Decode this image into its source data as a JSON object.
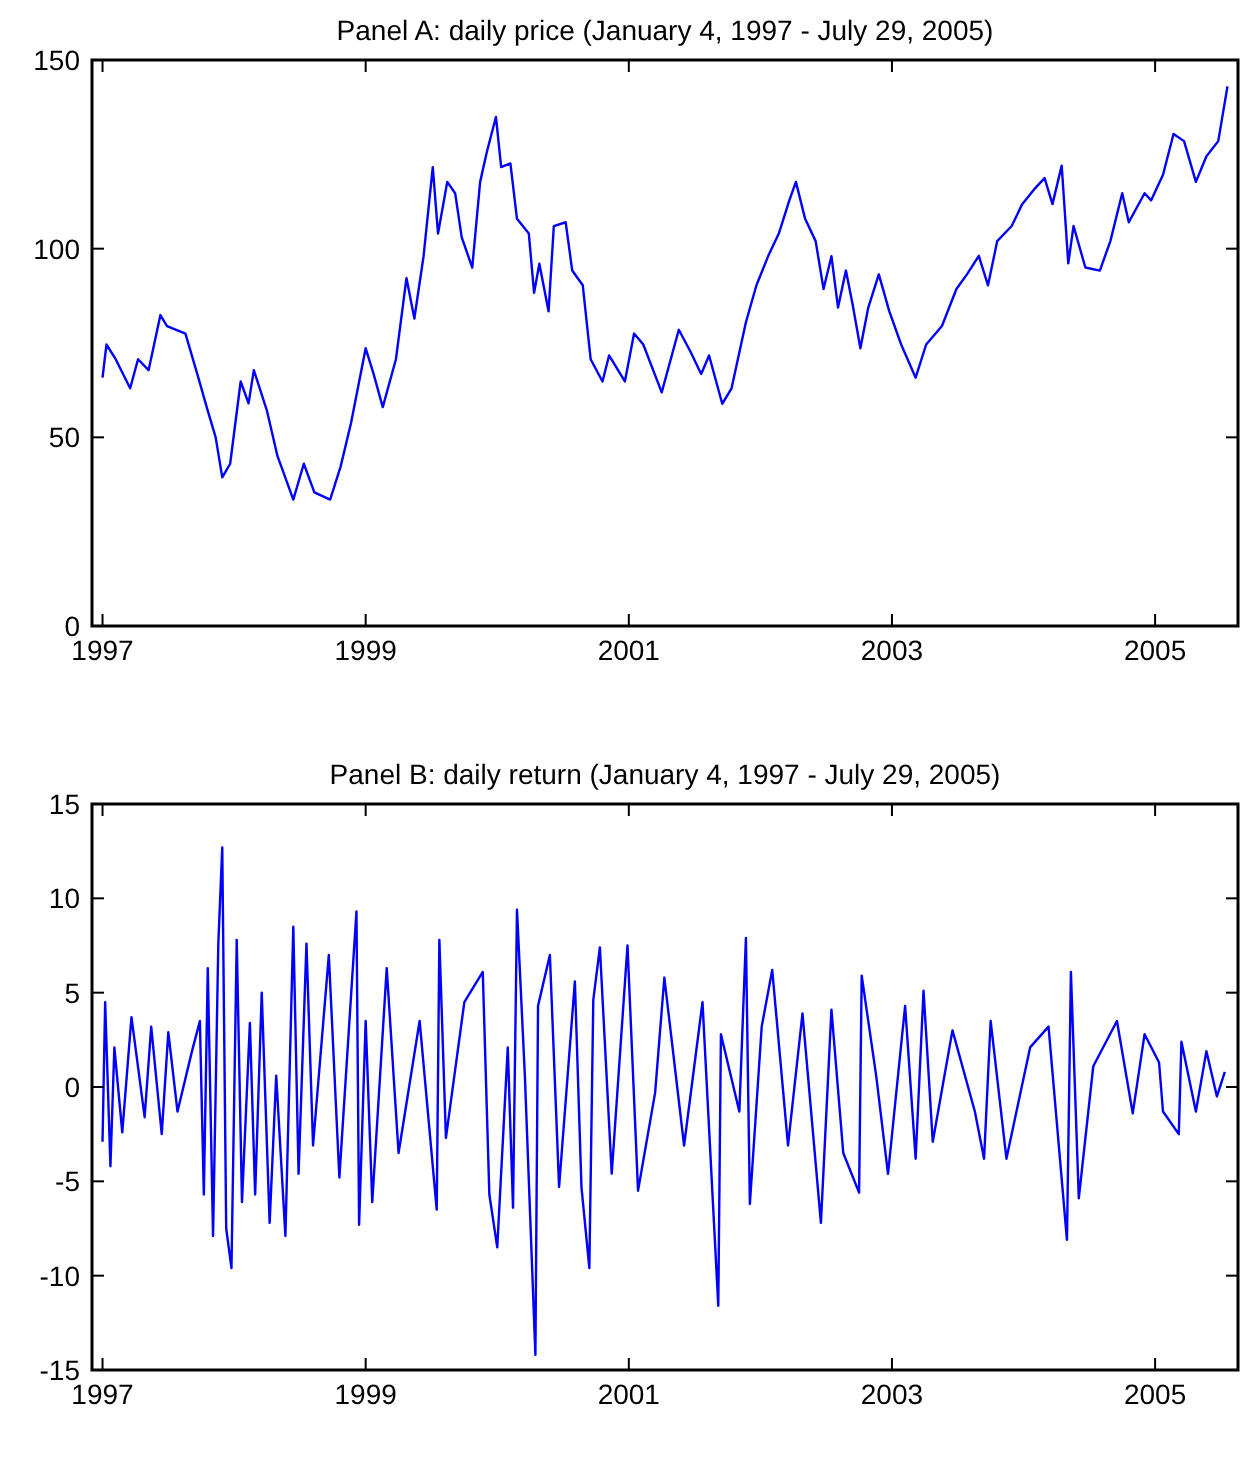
{
  "chart_data": [
    {
      "type": "line",
      "title": "Panel A: daily price (January 4, 1997 - July 29, 2005)",
      "color": "#0000ff",
      "xlim": [
        1996.92,
        2005.63
      ],
      "xticks": [
        1997,
        1999,
        2001,
        2003,
        2005
      ],
      "ylim": [
        0,
        150
      ],
      "yticks": [
        0,
        50,
        100,
        150
      ],
      "x": [
        1997.0,
        1997.03,
        1997.1,
        1997.21,
        1997.27,
        1997.35,
        1997.44,
        1997.49,
        1997.63,
        1997.72,
        1997.8,
        1997.86,
        1997.91,
        1997.97,
        1998.05,
        1998.11,
        1998.15,
        1998.25,
        1998.33,
        1998.45,
        1998.53,
        1998.61,
        1998.73,
        1998.81,
        1998.89,
        1999.0,
        1999.06,
        1999.13,
        1999.23,
        1999.31,
        1999.37,
        1999.44,
        1999.51,
        1999.55,
        1999.62,
        1999.68,
        1999.73,
        1999.81,
        1999.87,
        1999.92,
        1999.99,
        2000.03,
        2000.1,
        2000.15,
        2000.24,
        2000.28,
        2000.32,
        2000.39,
        2000.43,
        2000.52,
        2000.57,
        2000.65,
        2000.71,
        2000.8,
        2000.85,
        2000.97,
        2001.04,
        2001.11,
        2001.25,
        2001.38,
        2001.47,
        2001.55,
        2001.61,
        2001.71,
        2001.78,
        2001.89,
        2001.97,
        2002.06,
        2002.14,
        2002.22,
        2002.27,
        2002.34,
        2002.42,
        2002.48,
        2002.54,
        2002.59,
        2002.65,
        2002.7,
        2002.76,
        2002.82,
        2002.9,
        2002.98,
        2003.07,
        2003.18,
        2003.26,
        2003.38,
        2003.49,
        2003.57,
        2003.66,
        2003.73,
        2003.8,
        2003.91,
        2003.99,
        2004.08,
        2004.16,
        2004.22,
        2004.29,
        2004.34,
        2004.38,
        2004.47,
        2004.58,
        2004.66,
        2004.75,
        2004.8,
        2004.92,
        2004.97,
        2005.06,
        2005.14,
        2005.22,
        2005.31,
        2005.39,
        2005.48,
        2005.55
      ],
      "values": [
        65.8,
        74.6,
        70.7,
        63.0,
        70.7,
        67.8,
        82.4,
        79.5,
        77.5,
        66.8,
        57.0,
        50.0,
        39.4,
        43.0,
        64.8,
        59.0,
        67.8,
        57.0,
        45.0,
        33.5,
        43.0,
        35.4,
        33.5,
        42.3,
        54.0,
        73.6,
        66.8,
        58.0,
        70.7,
        92.2,
        81.5,
        98.0,
        121.6,
        104.0,
        117.7,
        114.7,
        103.0,
        95.0,
        117.7,
        125.5,
        134.9,
        121.6,
        122.6,
        107.9,
        104.0,
        88.3,
        96.0,
        83.4,
        106.0,
        107.0,
        94.2,
        90.3,
        70.7,
        64.8,
        71.7,
        64.8,
        77.5,
        74.6,
        61.9,
        78.5,
        72.6,
        66.8,
        71.7,
        58.9,
        62.9,
        80.5,
        90.3,
        98.1,
        104.0,
        112.8,
        117.7,
        107.9,
        102.0,
        89.3,
        98.0,
        84.4,
        94.2,
        85.4,
        73.6,
        84.4,
        93.2,
        83.4,
        74.6,
        65.8,
        74.6,
        79.5,
        89.3,
        93.2,
        98.1,
        90.3,
        102.0,
        106.0,
        111.8,
        115.7,
        118.7,
        111.8,
        122.0,
        96.1,
        106.0,
        95.0,
        94.2,
        102.0,
        114.7,
        107.0,
        114.7,
        112.8,
        119.6,
        130.4,
        128.5,
        117.7,
        124.5,
        128.5,
        143.0
      ]
    },
    {
      "type": "line",
      "title": "Panel B: daily return (January 4, 1997 - July 29, 2005)",
      "color": "#0000ff",
      "xlim": [
        1996.92,
        2005.63
      ],
      "xticks": [
        1997,
        1999,
        2001,
        2003,
        2005
      ],
      "ylim": [
        -15,
        15
      ],
      "yticks": [
        -15,
        -10,
        -5,
        0,
        5,
        10,
        15
      ],
      "x": [
        1997.0,
        1997.02,
        1997.06,
        1997.09,
        1997.15,
        1997.22,
        1997.32,
        1997.37,
        1997.45,
        1997.5,
        1997.57,
        1997.68,
        1997.74,
        1997.77,
        1997.8,
        1997.84,
        1997.88,
        1997.91,
        1997.94,
        1997.98,
        1998.02,
        1998.06,
        1998.12,
        1998.16,
        1998.21,
        1998.27,
        1998.32,
        1998.39,
        1998.45,
        1998.49,
        1998.55,
        1998.6,
        1998.72,
        1998.8,
        1998.93,
        1998.95,
        1999.0,
        1999.05,
        1999.16,
        1999.25,
        1999.41,
        1999.54,
        1999.56,
        1999.61,
        1999.75,
        1999.89,
        1999.94,
        2000.0,
        2000.08,
        2000.12,
        2000.15,
        2000.21,
        2000.29,
        2000.31,
        2000.4,
        2000.47,
        2000.59,
        2000.64,
        2000.7,
        2000.73,
        2000.78,
        2000.87,
        2000.99,
        2001.07,
        2001.2,
        2001.27,
        2001.42,
        2001.56,
        2001.68,
        2001.7,
        2001.84,
        2001.89,
        2001.92,
        2002.01,
        2002.09,
        2002.21,
        2002.32,
        2002.46,
        2002.54,
        2002.63,
        2002.75,
        2002.77,
        2002.88,
        2002.97,
        2003.1,
        2003.18,
        2003.24,
        2003.31,
        2003.46,
        2003.63,
        2003.7,
        2003.75,
        2003.87,
        2004.05,
        2004.19,
        2004.33,
        2004.36,
        2004.42,
        2004.53,
        2004.71,
        2004.83,
        2004.92,
        2005.03,
        2005.06,
        2005.18,
        2005.2,
        2005.31,
        2005.39,
        2005.47,
        2005.53
      ],
      "values": [
        -2.9,
        4.5,
        -4.2,
        2.1,
        -2.4,
        3.7,
        -1.6,
        3.2,
        -2.5,
        2.9,
        -1.3,
        1.9,
        3.5,
        -5.7,
        6.3,
        -7.9,
        7.6,
        12.7,
        -7.5,
        -9.6,
        7.8,
        -6.1,
        3.4,
        -5.7,
        5.0,
        -7.2,
        0.6,
        -7.9,
        8.5,
        -4.6,
        7.6,
        -3.1,
        7.0,
        -4.8,
        9.3,
        -7.3,
        3.5,
        -6.1,
        6.3,
        -3.5,
        3.5,
        -6.5,
        7.8,
        -2.7,
        4.5,
        6.1,
        -5.7,
        -8.5,
        2.1,
        -6.4,
        9.4,
        0.6,
        -14.2,
        4.3,
        7.0,
        -5.3,
        5.6,
        -5.3,
        -9.6,
        4.6,
        7.4,
        -4.6,
        7.5,
        -5.5,
        -0.3,
        5.8,
        -3.1,
        4.5,
        -11.6,
        2.8,
        -1.3,
        7.9,
        -6.2,
        3.2,
        6.2,
        -3.1,
        3.9,
        -7.2,
        4.1,
        -3.5,
        -5.6,
        5.9,
        0.6,
        -4.6,
        4.3,
        -3.8,
        5.1,
        -2.9,
        3.0,
        -1.3,
        -3.8,
        3.5,
        -3.8,
        2.1,
        3.2,
        -8.1,
        6.1,
        -5.9,
        1.1,
        3.5,
        -1.4,
        2.8,
        1.3,
        -1.3,
        -2.5,
        2.4,
        -1.3,
        1.9,
        -0.5,
        0.8
      ]
    }
  ]
}
